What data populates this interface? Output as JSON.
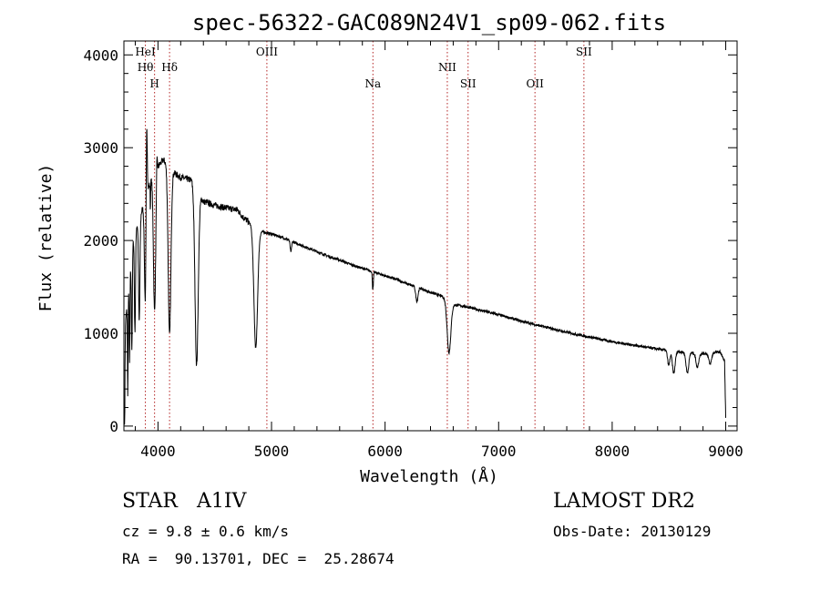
{
  "chart_data": {
    "type": "line",
    "title": "spec-56322-GAC089N24V1_sp09-062.fits",
    "xlabel": "Wavelength (Å)",
    "ylabel": "Flux (relative)",
    "xlim": [
      3700,
      9100
    ],
    "ylim": [
      -50,
      4150
    ],
    "xticks": [
      4000,
      5000,
      6000,
      7000,
      8000,
      9000
    ],
    "yticks": [
      0,
      1000,
      2000,
      3000,
      4000
    ],
    "grid": false,
    "line_color": "#000000",
    "marker_color": "#b22222",
    "spectral_lines": [
      {
        "label": "Hθ",
        "wavelength": 3889,
        "row": 2
      },
      {
        "label": "HeI",
        "wavelength": 3889,
        "row": 1
      },
      {
        "label": "H",
        "wavelength": 3970,
        "row": 3
      },
      {
        "label": "Hδ",
        "wavelength": 4102,
        "row": 2
      },
      {
        "label": "OIII",
        "wavelength": 4959,
        "row": 1
      },
      {
        "label": "Na",
        "wavelength": 5893,
        "row": 3
      },
      {
        "label": "NII",
        "wavelength": 6548,
        "row": 2
      },
      {
        "label": "SII",
        "wavelength": 6731,
        "row": 3
      },
      {
        "label": "OII",
        "wavelength": 7320,
        "row": 3
      },
      {
        "label": "SII",
        "wavelength": 7751,
        "row": 1
      }
    ],
    "continuum": [
      [
        3700,
        100
      ],
      [
        3710,
        1100
      ],
      [
        3730,
        1300
      ],
      [
        3760,
        1700
      ],
      [
        3790,
        2100
      ],
      [
        3830,
        2200
      ],
      [
        3900,
        2500
      ],
      [
        3950,
        2700
      ],
      [
        4000,
        2800
      ],
      [
        4050,
        2870
      ],
      [
        4100,
        2780
      ],
      [
        4150,
        2720
      ],
      [
        4200,
        2680
      ],
      [
        4300,
        2650
      ],
      [
        4400,
        2420
      ],
      [
        4500,
        2380
      ],
      [
        4600,
        2350
      ],
      [
        4700,
        2330
      ],
      [
        4750,
        2250
      ],
      [
        4800,
        2200
      ],
      [
        4900,
        2100
      ],
      [
        5000,
        2070
      ],
      [
        5100,
        2030
      ],
      [
        5200,
        1980
      ],
      [
        5300,
        1930
      ],
      [
        5400,
        1880
      ],
      [
        5500,
        1830
      ],
      [
        5600,
        1790
      ],
      [
        5700,
        1740
      ],
      [
        5800,
        1700
      ],
      [
        5900,
        1660
      ],
      [
        6000,
        1620
      ],
      [
        6100,
        1580
      ],
      [
        6200,
        1530
      ],
      [
        6300,
        1490
      ],
      [
        6400,
        1440
      ],
      [
        6500,
        1400
      ],
      [
        6600,
        1310
      ],
      [
        6700,
        1290
      ],
      [
        6800,
        1260
      ],
      [
        6900,
        1230
      ],
      [
        7000,
        1200
      ],
      [
        7200,
        1130
      ],
      [
        7400,
        1070
      ],
      [
        7600,
        1010
      ],
      [
        7800,
        960
      ],
      [
        8000,
        910
      ],
      [
        8200,
        870
      ],
      [
        8400,
        830
      ],
      [
        8600,
        800
      ],
      [
        8800,
        780
      ],
      [
        8950,
        800
      ],
      [
        8990,
        700
      ],
      [
        9000,
        80
      ]
    ],
    "absorption_lines": [
      {
        "wavelength": 3705,
        "depth": 1000,
        "width": 4
      },
      {
        "wavelength": 3734,
        "depth": 1000,
        "width": 3
      },
      {
        "wavelength": 3750,
        "depth": 900,
        "width": 3
      },
      {
        "wavelength": 3770,
        "depth": 1000,
        "width": 4
      },
      {
        "wavelength": 3797,
        "depth": 1100,
        "width": 5
      },
      {
        "wavelength": 3835,
        "depth": 1100,
        "width": 6
      },
      {
        "wavelength": 3889,
        "depth": 1150,
        "width": 8
      },
      {
        "wavelength": 3933,
        "depth": 300,
        "width": 2
      },
      {
        "wavelength": 3970,
        "depth": 1500,
        "width": 10
      },
      {
        "wavelength": 4102,
        "depth": 1800,
        "width": 12
      },
      {
        "wavelength": 4340,
        "depth": 1900,
        "width": 14
      },
      {
        "wavelength": 4861,
        "depth": 1300,
        "width": 16
      },
      {
        "wavelength": 5170,
        "depth": 120,
        "width": 6
      },
      {
        "wavelength": 5890,
        "depth": 160,
        "width": 3
      },
      {
        "wavelength": 5896,
        "depth": 120,
        "width": 3
      },
      {
        "wavelength": 6280,
        "depth": 150,
        "width": 10
      },
      {
        "wavelength": 6563,
        "depth": 550,
        "width": 16
      },
      {
        "wavelength": 8498,
        "depth": 160,
        "width": 10
      },
      {
        "wavelength": 8542,
        "depth": 240,
        "width": 12
      },
      {
        "wavelength": 8662,
        "depth": 220,
        "width": 12
      },
      {
        "wavelength": 8750,
        "depth": 150,
        "width": 12
      },
      {
        "wavelength": 8863,
        "depth": 120,
        "width": 12
      }
    ],
    "emission_spikes": [
      {
        "wavelength": 3900,
        "height": 1100,
        "width": 5
      },
      {
        "wavelength": 3990,
        "height": 250,
        "width": 4
      }
    ]
  },
  "info": {
    "object": "STAR   A1IV",
    "survey": "LAMOST DR2",
    "cz": "cz = 9.8 ± 0.6 km/s",
    "obsdate": "Obs-Date: 20130129",
    "radec": "RA =  90.13701, DEC =  25.28674"
  }
}
